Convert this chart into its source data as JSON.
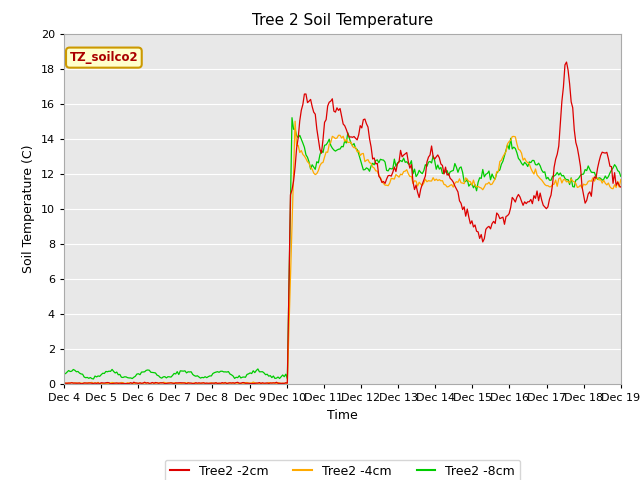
{
  "title": "Tree 2 Soil Temperature",
  "ylabel": "Soil Temperature (C)",
  "xlabel": "Time",
  "ylim": [
    0,
    20
  ],
  "bg_color": "#e8e8e8",
  "legend_label": "TZ_soilco2",
  "line_colors": [
    "#dd0000",
    "#ffaa00",
    "#00cc00"
  ],
  "line_labels": [
    "Tree2 -2cm",
    "Tree2 -4cm",
    "Tree2 -8cm"
  ],
  "xtick_labels": [
    "Dec 4",
    "Dec 5",
    "Dec 6",
    "Dec 7",
    "Dec 8",
    "Dec 9",
    "Dec 10",
    "Dec 11",
    "Dec 12",
    "Dec 13",
    "Dec 14",
    "Dec 15",
    "Dec 16",
    "Dec 17",
    "Dec 18",
    "Dec 19"
  ],
  "title_fontsize": 11,
  "axis_fontsize": 9,
  "tick_fontsize": 8,
  "legend_fontsize": 9
}
